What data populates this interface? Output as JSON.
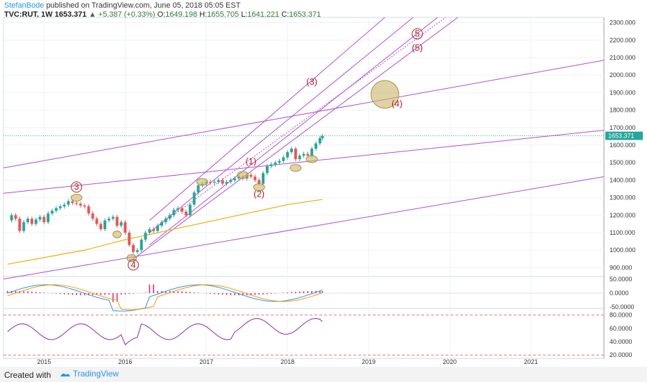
{
  "header": {
    "author": "StefanBode",
    "published": "published on TradingView.com, June 05, 2018 05:05 EST",
    "symbol": "TVC:RUT, 1W",
    "last": "1653.371",
    "change": "+5.387 (+0.33%)",
    "o_label": "O:",
    "o": "1649.198",
    "h_label": "H:",
    "h": "1655.705",
    "l_label": "L:",
    "l": "1641.221",
    "c_label": "C:",
    "c": "1653.371"
  },
  "footer": {
    "created": "Created with",
    "brand": "TradingView"
  },
  "colors": {
    "up": "#26a69a",
    "down": "#ef5350",
    "channel": "#b04bd6",
    "ma": "#f2b21b",
    "macd_line": "#2196f3",
    "signal_line": "#ff9800",
    "hist": "#e91e63",
    "rsi": "#8e24aa",
    "wave": "#b71c1c",
    "ellipse": "#c9b56b",
    "price_tag": "#26a69a"
  },
  "chart_data": [
    {
      "type": "line",
      "name": "price",
      "x_ticks": [
        "2015",
        "2016",
        "2017",
        "2018",
        "2019",
        "2020",
        "2021"
      ],
      "y_ticks": [
        "900.000",
        "1000.000",
        "1100.000",
        "1200.000",
        "1300.000",
        "1400.000",
        "1500.000",
        "1600.000",
        "1700.000",
        "1800.000",
        "1900.000",
        "2000.000",
        "2100.000",
        "2200.000",
        "2300.000"
      ],
      "ylim": [
        850,
        2330
      ],
      "xlim": [
        2014.5,
        2021.9
      ],
      "last_price_label": "1653.371",
      "wave_labels": [
        "3",
        "4",
        "(1)",
        "(2)",
        "(3)",
        "(4)",
        "5",
        "(5)"
      ],
      "close_x": [
        2014.55,
        2014.6,
        2014.65,
        2014.7,
        2014.75,
        2014.8,
        2014.85,
        2014.9,
        2014.95,
        2015.0,
        2015.05,
        2015.1,
        2015.15,
        2015.2,
        2015.25,
        2015.3,
        2015.35,
        2015.4,
        2015.45,
        2015.5,
        2015.55,
        2015.6,
        2015.65,
        2015.7,
        2015.75,
        2015.8,
        2015.85,
        2015.9,
        2015.95,
        2016.0,
        2016.05,
        2016.1,
        2016.15,
        2016.2,
        2016.25,
        2016.3,
        2016.35,
        2016.4,
        2016.45,
        2016.5,
        2016.55,
        2016.6,
        2016.65,
        2016.7,
        2016.75,
        2016.8,
        2016.85,
        2016.9,
        2016.95,
        2017.0,
        2017.05,
        2017.1,
        2017.15,
        2017.2,
        2017.25,
        2017.3,
        2017.35,
        2017.4,
        2017.45,
        2017.5,
        2017.55,
        2017.6,
        2017.65,
        2017.7,
        2017.75,
        2017.8,
        2017.85,
        2017.9,
        2017.95,
        2018.0,
        2018.05,
        2018.1,
        2018.15,
        2018.2,
        2018.25,
        2018.3,
        2018.35,
        2018.4,
        2018.43
      ],
      "close": [
        1170,
        1200,
        1180,
        1110,
        1160,
        1180,
        1150,
        1175,
        1190,
        1160,
        1210,
        1225,
        1240,
        1250,
        1260,
        1280,
        1270,
        1265,
        1255,
        1250,
        1210,
        1180,
        1150,
        1120,
        1170,
        1180,
        1190,
        1140,
        1160,
        1100,
        1030,
        990,
        1000,
        1060,
        1100,
        1120,
        1110,
        1140,
        1160,
        1180,
        1200,
        1230,
        1240,
        1220,
        1200,
        1260,
        1330,
        1370,
        1380,
        1390,
        1385,
        1390,
        1400,
        1380,
        1390,
        1400,
        1410,
        1420,
        1410,
        1430,
        1420,
        1400,
        1380,
        1440,
        1480,
        1490,
        1500,
        1510,
        1530,
        1560,
        1580,
        1520,
        1540,
        1550,
        1540,
        1580,
        1610,
        1640,
        1653
      ],
      "ma200_x": [
        2014.55,
        2015.5,
        2016.0,
        2016.5,
        2017.0,
        2017.5,
        2018.0,
        2018.43
      ],
      "ma200": [
        920,
        1000,
        1060,
        1110,
        1160,
        1210,
        1260,
        1290
      ]
    },
    {
      "type": "line",
      "name": "MACD",
      "y_ticks": [
        "50.0000",
        "0.0000",
        "-50.0000"
      ],
      "ylim": [
        -55,
        60
      ]
    },
    {
      "type": "line",
      "name": "RSI",
      "y_ticks": [
        "80.0000",
        "60.0000",
        "40.0000",
        "20.0000"
      ],
      "ylim": [
        15,
        90
      ],
      "levels": [
        80,
        20
      ]
    }
  ]
}
